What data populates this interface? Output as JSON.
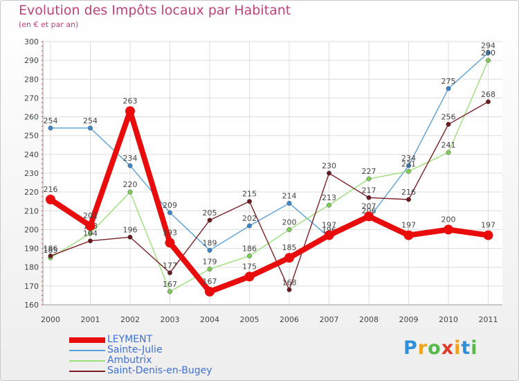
{
  "title": "Evolution des Impôts locaux par Habitant",
  "subtitle": "(en € et par an)",
  "brand": {
    "text": "Proxiti",
    "letter_colors": [
      "#2f8fd8",
      "#f0a21a",
      "#59b84a",
      "#e23a2a",
      "#f0a21a",
      "#2f8fd8",
      "#59b84a"
    ]
  },
  "chart_data": {
    "type": "line",
    "categories": [
      "2000",
      "2001",
      "2002",
      "2003",
      "2004",
      "2005",
      "2006",
      "2007",
      "2008",
      "2009",
      "2010",
      "2011"
    ],
    "ylim": [
      160,
      300
    ],
    "yticks": [
      160,
      170,
      180,
      190,
      200,
      210,
      220,
      230,
      240,
      250,
      260,
      270,
      280,
      290,
      300
    ],
    "grid": true,
    "legend_position": "bottom-left",
    "series": [
      {
        "name": "Sainte-Julie",
        "color": "#5aa0d8",
        "dot": "#3a86c8",
        "values": [
          254,
          254,
          234,
          209,
          189,
          202,
          214,
          196,
          206,
          234,
          275,
          294
        ]
      },
      {
        "name": "Ambutrix",
        "color": "#9be07a",
        "dot": "#7ccf52",
        "values": [
          185,
          198,
          220,
          167,
          179,
          186,
          200,
          213,
          227,
          231,
          241,
          290
        ]
      },
      {
        "name": "Saint-Denis-en-Bugey",
        "color": "#7a1f24",
        "dot": "#6a1a1e",
        "values": [
          186,
          194,
          196,
          177,
          205,
          215,
          168,
          230,
          217,
          216,
          256,
          268
        ]
      },
      {
        "name": "LEYMENT",
        "color": "#e80c0c",
        "dot": "#e80c0c",
        "values": [
          216,
          202,
          263,
          193,
          167,
          175,
          185,
          197,
          207,
          197,
          200,
          197
        ]
      }
    ],
    "legend_order": [
      "LEYMENT",
      "Sainte-Julie",
      "Ambutrix",
      "Saint-Denis-en-Bugey"
    ]
  }
}
